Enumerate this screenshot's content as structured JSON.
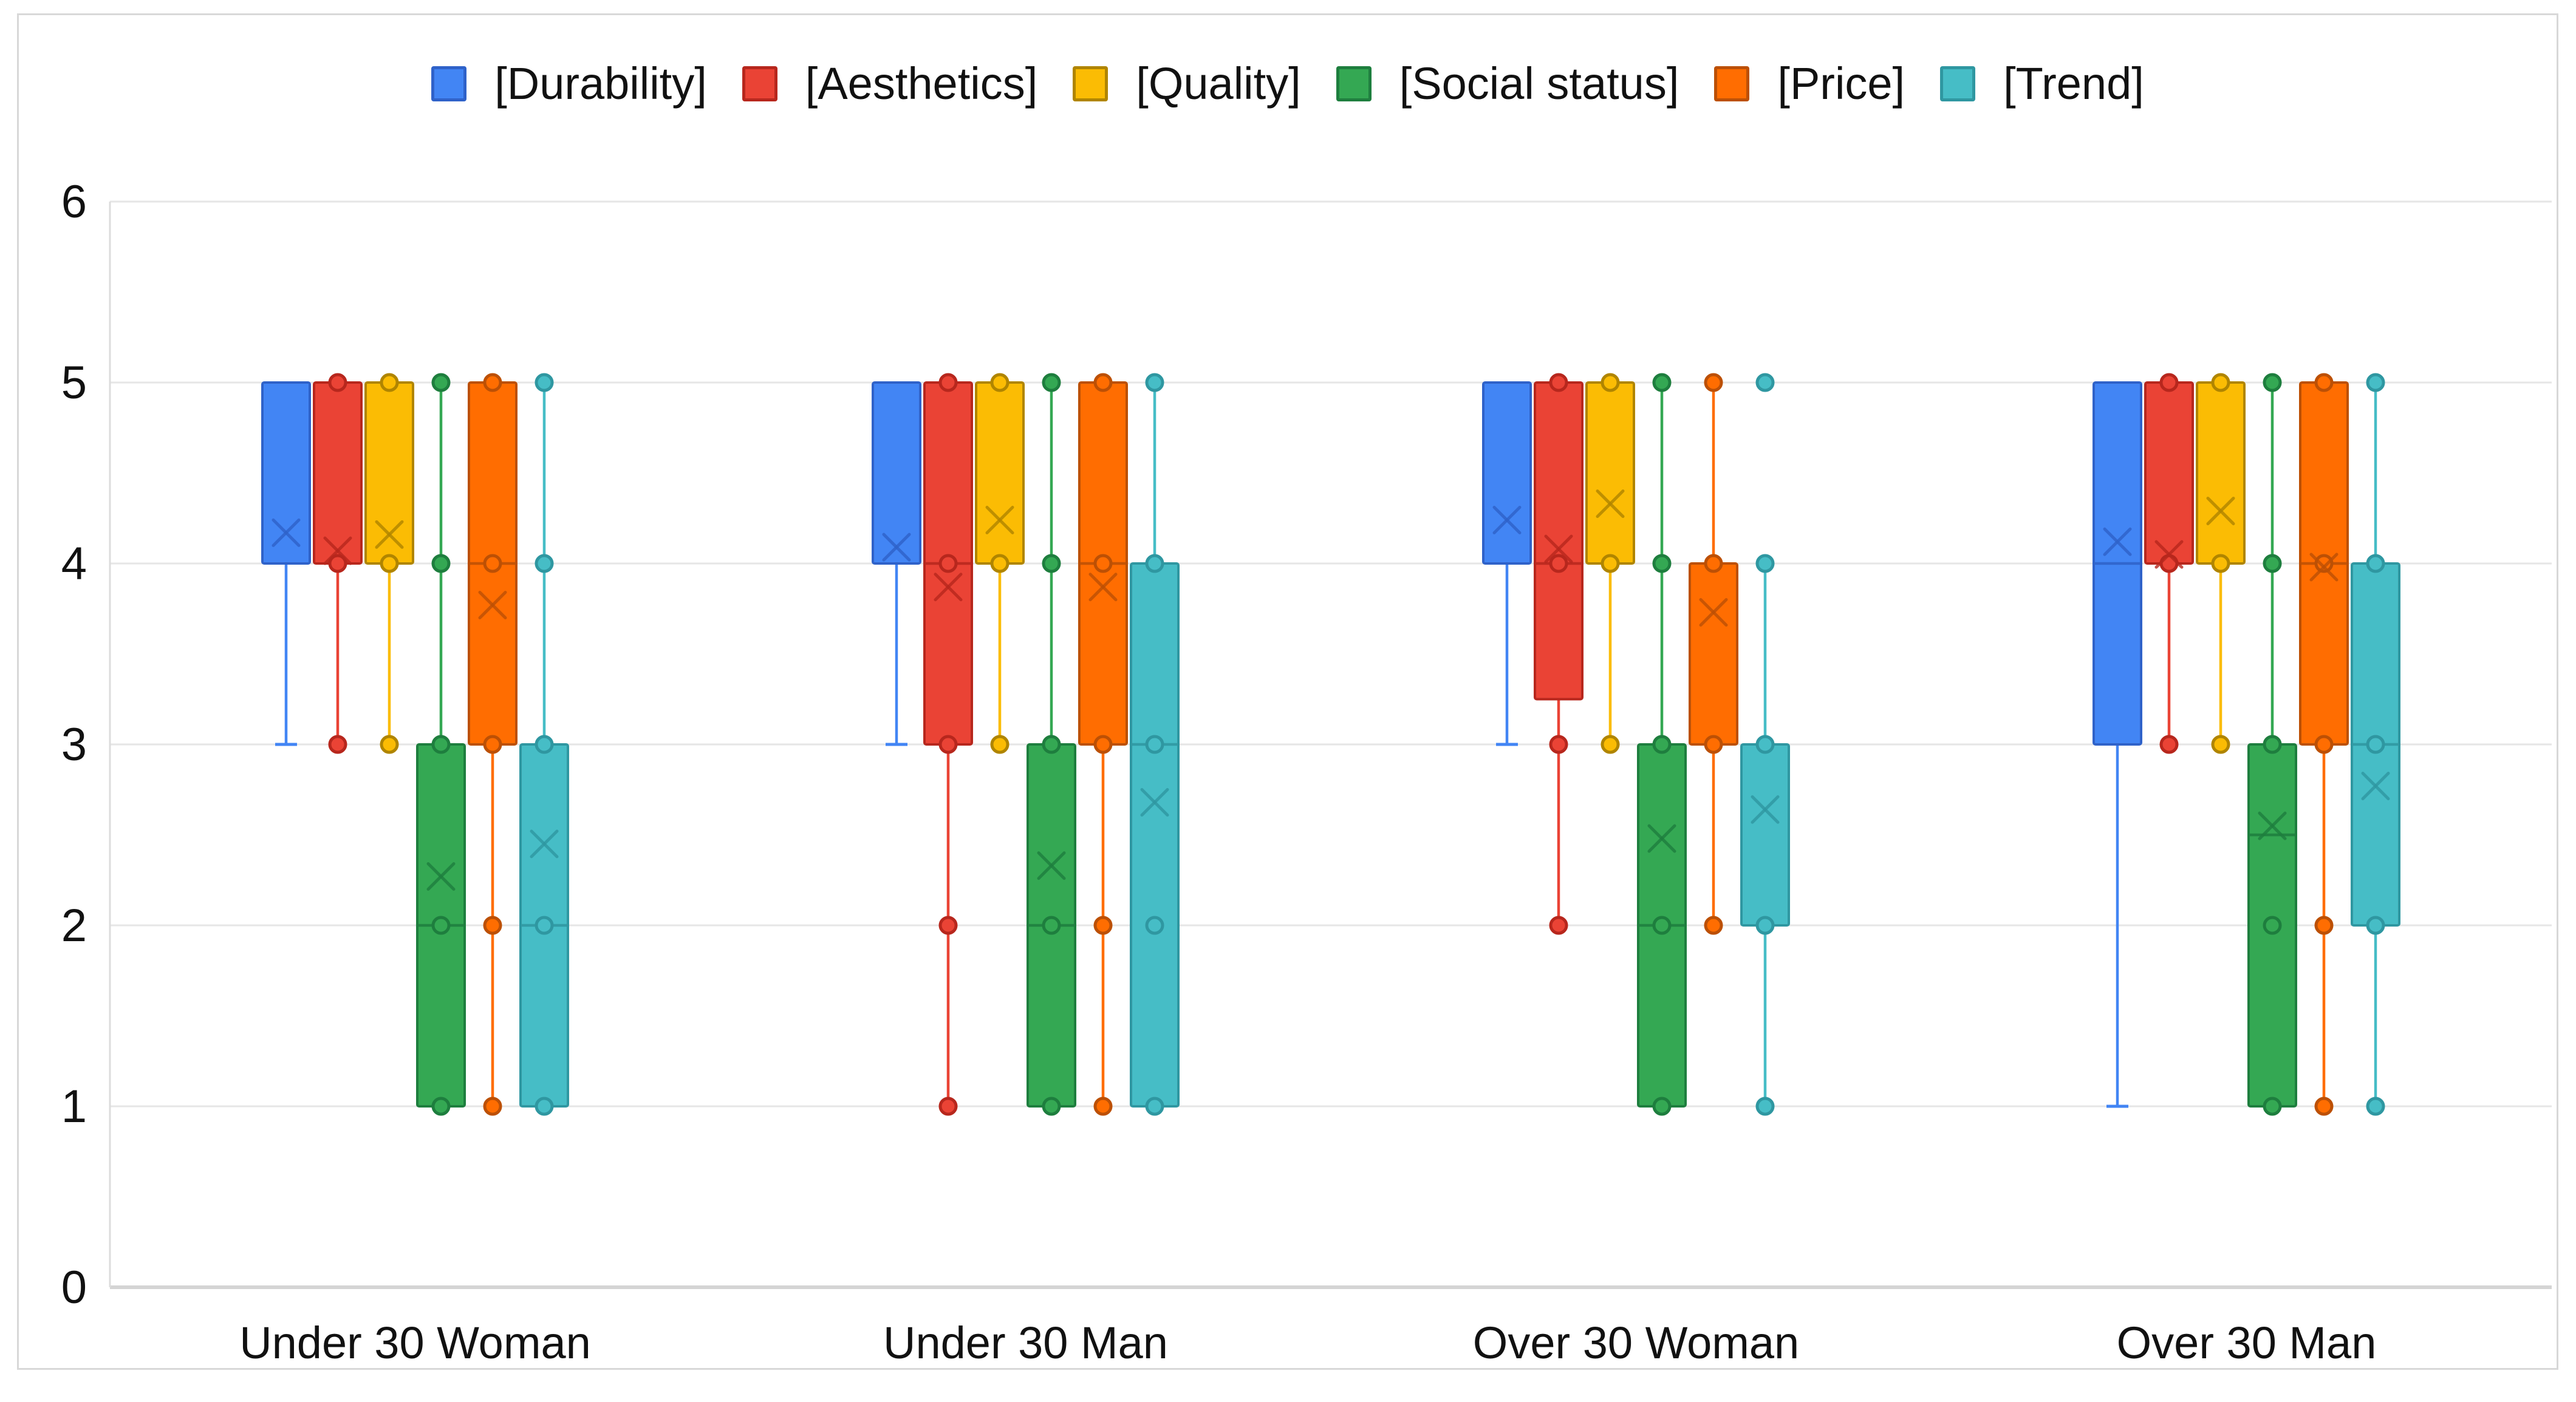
{
  "chart_data": {
    "type": "boxplot",
    "title": "",
    "legend_position": "top",
    "grid": true,
    "categories": [
      "Under 30 Woman",
      "Under 30 Man",
      "Over 30 Woman",
      "Over 30 Man"
    ],
    "y_axis": {
      "min": 0,
      "max": 6,
      "tick_step": 1,
      "ticks": [
        "0",
        "1",
        "2",
        "3",
        "4",
        "5",
        "6"
      ]
    },
    "series": [
      {
        "name": "[Durability]",
        "color": "#4285F4",
        "border_color": "#2f62c9",
        "whisker_caps": true,
        "boxes": [
          {
            "category": "Under 30 Woman",
            "q1": 4,
            "q3": 5,
            "median": 4,
            "whisker_low": 3,
            "whisker_high": 5,
            "mean": 4.17,
            "points": [],
            "outliers": []
          },
          {
            "category": "Under 30 Man",
            "q1": 4,
            "q3": 5,
            "median": 4,
            "whisker_low": 3,
            "whisker_high": 5,
            "mean": 4.09,
            "points": [],
            "outliers": []
          },
          {
            "category": "Over 30 Woman",
            "q1": 4,
            "q3": 5,
            "median": 4,
            "whisker_low": 3,
            "whisker_high": 5,
            "mean": 4.24,
            "points": [],
            "outliers": []
          },
          {
            "category": "Over 30 Man",
            "q1": 3,
            "q3": 5,
            "median": 4,
            "whisker_low": 1,
            "whisker_high": 5,
            "mean": 4.12,
            "points": [],
            "outliers": []
          }
        ]
      },
      {
        "name": "[Aesthetics]",
        "color": "#EA4335",
        "border_color": "#b7271d",
        "whisker_caps": false,
        "boxes": [
          {
            "category": "Under 30 Woman",
            "q1": 4,
            "q3": 5,
            "median": 4,
            "whisker_low": 3,
            "whisker_high": 5,
            "mean": 4.07,
            "points": [
              5,
              4,
              3
            ],
            "outliers": []
          },
          {
            "category": "Under 30 Man",
            "q1": 3,
            "q3": 5,
            "median": 4,
            "whisker_low": 1,
            "whisker_high": 5,
            "mean": 3.87,
            "points": [
              5,
              4,
              3,
              2,
              1
            ],
            "outliers": []
          },
          {
            "category": "Over 30 Woman",
            "q1": 3.25,
            "q3": 5,
            "median": 4,
            "whisker_low": 2,
            "whisker_high": 5,
            "mean": 4.08,
            "points": [
              5,
              4,
              3,
              2
            ],
            "outliers": []
          },
          {
            "category": "Over 30 Man",
            "q1": 4,
            "q3": 5,
            "median": 4,
            "whisker_low": 3,
            "whisker_high": 5,
            "mean": 4.05,
            "points": [
              5,
              4,
              3
            ],
            "outliers": []
          }
        ]
      },
      {
        "name": "[Quality]",
        "color": "#FBBC04",
        "border_color": "#b08500",
        "whisker_caps": false,
        "boxes": [
          {
            "category": "Under 30 Woman",
            "q1": 4,
            "q3": 5,
            "median": 4,
            "whisker_low": 3,
            "whisker_high": 5,
            "mean": 4.16,
            "points": [
              5,
              4,
              3
            ],
            "outliers": []
          },
          {
            "category": "Under 30 Man",
            "q1": 4,
            "q3": 5,
            "median": 4,
            "whisker_low": 3,
            "whisker_high": 5,
            "mean": 4.24,
            "points": [
              5,
              4,
              3
            ],
            "outliers": []
          },
          {
            "category": "Over 30 Woman",
            "q1": 4,
            "q3": 5,
            "median": 4,
            "whisker_low": 3,
            "whisker_high": 5,
            "mean": 4.33,
            "points": [
              5,
              4,
              3
            ],
            "outliers": []
          },
          {
            "category": "Over 30 Man",
            "q1": 4,
            "q3": 5,
            "median": 4,
            "whisker_low": 3,
            "whisker_high": 5,
            "mean": 4.29,
            "points": [
              5,
              4,
              3
            ],
            "outliers": []
          }
        ]
      },
      {
        "name": "[Social status]",
        "color": "#34A853",
        "border_color": "#1e7e3e",
        "whisker_caps": false,
        "boxes": [
          {
            "category": "Under 30 Woman",
            "q1": 1,
            "q3": 3,
            "median": 2,
            "whisker_low": 1,
            "whisker_high": 5,
            "mean": 2.27,
            "points": [
              5,
              4,
              3,
              2,
              1
            ],
            "outliers": []
          },
          {
            "category": "Under 30 Man",
            "q1": 1,
            "q3": 3,
            "median": 2,
            "whisker_low": 1,
            "whisker_high": 5,
            "mean": 2.33,
            "points": [
              5,
              4,
              3,
              2,
              1
            ],
            "outliers": []
          },
          {
            "category": "Over 30 Woman",
            "q1": 1,
            "q3": 3,
            "median": 2,
            "whisker_low": 1,
            "whisker_high": 5,
            "mean": 2.48,
            "points": [
              5,
              4,
              3,
              2,
              1
            ],
            "outliers": []
          },
          {
            "category": "Over 30 Man",
            "q1": 1,
            "q3": 3,
            "median": 2.5,
            "whisker_low": 1,
            "whisker_high": 5,
            "mean": 2.55,
            "points": [
              5,
              4,
              3,
              2,
              1
            ],
            "outliers": []
          }
        ]
      },
      {
        "name": "[Price]",
        "color": "#FF6D01",
        "border_color": "#bc5005",
        "whisker_caps": false,
        "boxes": [
          {
            "category": "Under 30 Woman",
            "q1": 3,
            "q3": 5,
            "median": 4,
            "whisker_low": 1,
            "whisker_high": 5,
            "mean": 3.77,
            "points": [
              5,
              4,
              3,
              2,
              1
            ],
            "outliers": []
          },
          {
            "category": "Under 30 Man",
            "q1": 3,
            "q3": 5,
            "median": 4,
            "whisker_low": 1,
            "whisker_high": 5,
            "mean": 3.87,
            "points": [
              5,
              4,
              3,
              2,
              1
            ],
            "outliers": []
          },
          {
            "category": "Over 30 Woman",
            "q1": 3,
            "q3": 4,
            "median": 4,
            "whisker_low": 2,
            "whisker_high": 5,
            "mean": 3.73,
            "points": [
              5,
              4,
              3,
              2
            ],
            "outliers": []
          },
          {
            "category": "Over 30 Man",
            "q1": 3,
            "q3": 5,
            "median": 4,
            "whisker_low": 1,
            "whisker_high": 5,
            "mean": 3.98,
            "points": [
              5,
              4,
              3,
              2,
              1
            ],
            "outliers": []
          }
        ]
      },
      {
        "name": "[Trend]",
        "color": "#46BDC6",
        "border_color": "#2f97a1",
        "whisker_caps": false,
        "boxes": [
          {
            "category": "Under 30 Woman",
            "q1": 1,
            "q3": 3,
            "median": 2,
            "whisker_low": 1,
            "whisker_high": 5,
            "mean": 2.45,
            "points": [
              5,
              4,
              3,
              2,
              1
            ],
            "outliers": []
          },
          {
            "category": "Under 30 Man",
            "q1": 1,
            "q3": 4,
            "median": 3,
            "whisker_low": 1,
            "whisker_high": 5,
            "mean": 2.68,
            "points": [
              5,
              4,
              3,
              2,
              1
            ],
            "outliers": []
          },
          {
            "category": "Over 30 Woman",
            "q1": 2,
            "q3": 3,
            "median": 3,
            "whisker_low": 1,
            "whisker_high": 4,
            "mean": 2.64,
            "points": [
              4,
              3,
              2,
              1
            ],
            "outliers": [
              5
            ]
          },
          {
            "category": "Over 30 Man",
            "q1": 2,
            "q3": 4,
            "median": 3,
            "whisker_low": 1,
            "whisker_high": 5,
            "mean": 2.77,
            "points": [
              5,
              4,
              3,
              2,
              1
            ],
            "outliers": []
          }
        ]
      }
    ]
  }
}
